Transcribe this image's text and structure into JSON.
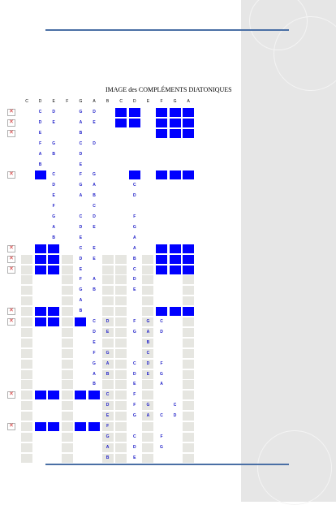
{
  "title": "IMAGE des COMPLÉMENTS DIATONIQUES",
  "columns": [
    "C",
    "D",
    "E",
    "F",
    "G",
    "A",
    "B",
    "C",
    "D",
    "E",
    "F",
    "G",
    "A"
  ],
  "colors": {
    "accent_blue": "#0000ff",
    "note_text": "#1c1cc8",
    "shade": "#e6e6e1",
    "rule": "#4a6fa5"
  },
  "rows": [
    {
      "broken": true,
      "cells": [
        "",
        "C",
        "D",
        "",
        "G",
        "D",
        "",
        "",
        "",
        "",
        "",
        "",
        ""
      ],
      "blue": [
        7,
        8,
        10,
        11,
        12
      ]
    },
    {
      "broken": true,
      "cells": [
        "",
        "D",
        "E",
        "",
        "A",
        "E",
        "",
        "",
        "",
        "",
        "",
        "",
        ""
      ],
      "blue": [
        7,
        8,
        10,
        11,
        12
      ]
    },
    {
      "broken": true,
      "cells": [
        "",
        "E",
        "",
        "",
        "B",
        "",
        "",
        "",
        "",
        "",
        "",
        "",
        ""
      ],
      "blue": [
        10,
        11,
        12
      ]
    },
    {
      "broken": false,
      "cells": [
        "",
        "F",
        "G",
        "",
        "C",
        "D",
        "",
        "",
        "",
        "",
        "",
        "",
        ""
      ],
      "blue": []
    },
    {
      "broken": false,
      "cells": [
        "",
        "A",
        "B",
        "",
        "D",
        "",
        "",
        "",
        "",
        "",
        "",
        "",
        ""
      ],
      "blue": []
    },
    {
      "broken": false,
      "cells": [
        "",
        "B",
        "",
        "",
        "E",
        "",
        "",
        "",
        "",
        "",
        "",
        "",
        ""
      ],
      "blue": []
    },
    {
      "broken": true,
      "cells": [
        "",
        "",
        "C",
        "",
        "F",
        "G",
        "",
        "",
        "",
        "",
        "",
        "",
        ""
      ],
      "blue": [
        1,
        8,
        10,
        11,
        12
      ]
    },
    {
      "broken": false,
      "cells": [
        "",
        "",
        "D",
        "",
        "G",
        "A",
        "",
        "",
        "C",
        "",
        "",
        "",
        ""
      ],
      "blue": []
    },
    {
      "broken": false,
      "cells": [
        "",
        "",
        "E",
        "",
        "A",
        "B",
        "",
        "",
        "D",
        "",
        "",
        "",
        ""
      ],
      "blue": []
    },
    {
      "broken": false,
      "cells": [
        "",
        "",
        "F",
        "",
        "",
        "C",
        "",
        "",
        "",
        "",
        "",
        "",
        ""
      ],
      "blue": []
    },
    {
      "broken": false,
      "cells": [
        "",
        "",
        "G",
        "",
        "C",
        "D",
        "",
        "",
        "F",
        "",
        "",
        "",
        ""
      ],
      "blue": []
    },
    {
      "broken": false,
      "cells": [
        "",
        "",
        "A",
        "",
        "D",
        "E",
        "",
        "",
        "G",
        "",
        "",
        "",
        ""
      ],
      "blue": []
    },
    {
      "broken": false,
      "cells": [
        "",
        "",
        "B",
        "",
        "E",
        "",
        "",
        "",
        "A",
        "",
        "",
        "",
        ""
      ],
      "blue": []
    },
    {
      "broken": true,
      "cells": [
        "",
        "",
        "",
        "",
        "C",
        "E",
        "",
        "",
        "A",
        "",
        "",
        "",
        ""
      ],
      "blue": [
        1,
        2,
        10,
        11,
        12
      ]
    },
    {
      "broken": true,
      "cells": [
        "",
        "",
        "",
        "",
        "D",
        "E",
        "",
        "",
        "B",
        "",
        "",
        "",
        ""
      ],
      "blue": [
        1,
        2,
        10,
        11,
        12
      ]
    },
    {
      "broken": true,
      "cells": [
        "",
        "",
        "",
        "",
        "E",
        "",
        "",
        "",
        "C",
        "",
        "",
        "",
        ""
      ],
      "blue": [
        1,
        2,
        10,
        11,
        12
      ]
    },
    {
      "broken": false,
      "cells": [
        "",
        "",
        "",
        "",
        "F",
        "A",
        "",
        "",
        "D",
        "",
        "",
        "",
        ""
      ],
      "blue": []
    },
    {
      "broken": false,
      "cells": [
        "",
        "",
        "",
        "",
        "G",
        "B",
        "",
        "",
        "E",
        "",
        "",
        "",
        ""
      ],
      "blue": []
    },
    {
      "broken": false,
      "cells": [
        "",
        "",
        "",
        "",
        "A",
        "",
        "",
        "",
        "",
        "",
        "",
        "",
        ""
      ],
      "blue": []
    },
    {
      "broken": true,
      "cells": [
        "",
        "",
        "",
        "",
        "B",
        "",
        "",
        "",
        "",
        "",
        "",
        "",
        ""
      ],
      "blue": [
        1,
        2,
        10,
        11,
        12
      ]
    },
    {
      "broken": true,
      "cells": [
        "",
        "",
        "",
        "",
        "",
        "C",
        "D",
        "",
        "F",
        "G",
        "C",
        "",
        ""
      ],
      "blue": [
        1,
        2,
        4
      ]
    },
    {
      "broken": false,
      "cells": [
        "",
        "",
        "",
        "",
        "",
        "D",
        "E",
        "",
        "G",
        "A",
        "D",
        "",
        ""
      ],
      "blue": []
    },
    {
      "broken": false,
      "cells": [
        "",
        "",
        "",
        "",
        "",
        "E",
        "",
        "",
        "",
        "B",
        "",
        "",
        ""
      ],
      "blue": []
    },
    {
      "broken": false,
      "cells": [
        "",
        "",
        "",
        "",
        "",
        "F",
        "G",
        "",
        "",
        "C",
        "",
        "",
        ""
      ],
      "blue": []
    },
    {
      "broken": false,
      "cells": [
        "",
        "",
        "",
        "",
        "",
        "G",
        "A",
        "",
        "C",
        "D",
        "F",
        "",
        ""
      ],
      "blue": []
    },
    {
      "broken": false,
      "cells": [
        "",
        "",
        "",
        "",
        "",
        "A",
        "B",
        "",
        "D",
        "E",
        "G",
        "",
        ""
      ],
      "blue": []
    },
    {
      "broken": false,
      "cells": [
        "",
        "",
        "",
        "",
        "",
        "B",
        "",
        "",
        "E",
        "",
        "A",
        "",
        ""
      ],
      "blue": []
    },
    {
      "broken": true,
      "cells": [
        "",
        "",
        "",
        "",
        "",
        "",
        "C",
        "",
        "F",
        "",
        "",
        "",
        ""
      ],
      "blue": [
        1,
        2,
        4,
        5
      ]
    },
    {
      "broken": false,
      "cells": [
        "",
        "",
        "",
        "",
        "",
        "",
        "D",
        "",
        "F",
        "G",
        "",
        "C",
        ""
      ],
      "blue": []
    },
    {
      "broken": false,
      "cells": [
        "",
        "",
        "",
        "",
        "",
        "",
        "E",
        "",
        "G",
        "A",
        "C",
        "D",
        ""
      ],
      "blue": []
    },
    {
      "broken": true,
      "cells": [
        "",
        "",
        "",
        "",
        "",
        "",
        "F",
        "",
        "",
        "",
        "",
        "",
        ""
      ],
      "blue": [
        1,
        2,
        4,
        5
      ]
    },
    {
      "broken": false,
      "cells": [
        "",
        "",
        "",
        "",
        "",
        "",
        "G",
        "",
        "C",
        "",
        "F",
        "",
        ""
      ],
      "blue": []
    },
    {
      "broken": false,
      "cells": [
        "",
        "",
        "",
        "",
        "",
        "",
        "A",
        "",
        "D",
        "",
        "G",
        "",
        ""
      ],
      "blue": []
    },
    {
      "broken": false,
      "cells": [
        "",
        "",
        "",
        "",
        "",
        "",
        "B",
        "",
        "E",
        "",
        "",
        "",
        ""
      ],
      "blue": []
    }
  ]
}
